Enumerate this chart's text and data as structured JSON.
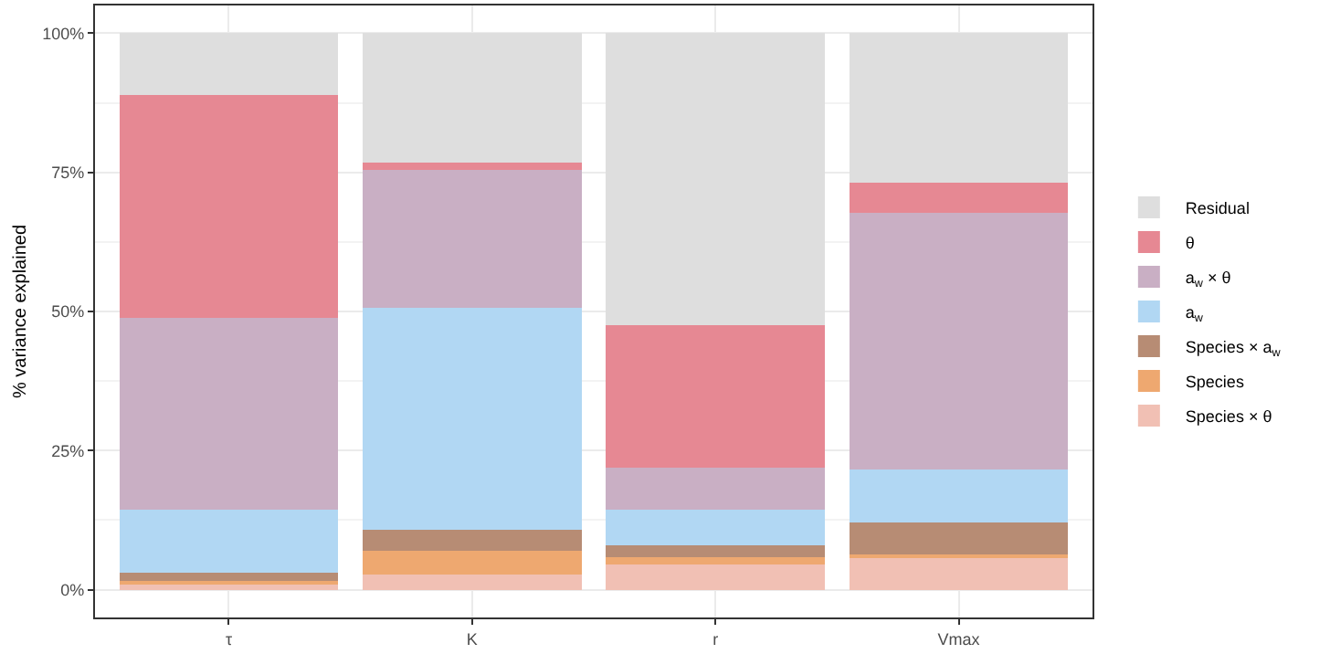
{
  "chart_data": {
    "type": "bar",
    "stacked": true,
    "ylabel": "% variance explained",
    "categories": [
      "τ",
      "K",
      "r",
      "Vmax"
    ],
    "series": [
      {
        "name": "Species × θ",
        "color": "#f1c0b4",
        "values": [
          1.2,
          2.8,
          4.6,
          5.6
        ]
      },
      {
        "name": "Species",
        "color": "#eea870",
        "values": [
          0.3,
          4.2,
          1.3,
          0.7
        ]
      },
      {
        "name": "Species × a$_{w}$",
        "color": "#b78c74",
        "values": [
          1.6,
          3.7,
          2.1,
          5.8
        ]
      },
      {
        "name": "a$_{w}$",
        "color": "#b1d7f3",
        "values": [
          11.2,
          39.9,
          6.3,
          9.5
        ]
      },
      {
        "name": "a$_{w}$ × θ",
        "color": "#c9afc4",
        "values": [
          34.5,
          24.8,
          7.6,
          46.2
        ]
      },
      {
        "name": "θ",
        "color": "#e68893",
        "values": [
          40.1,
          1.4,
          25.7,
          5.3
        ]
      },
      {
        "name": "Residual",
        "color": "#dedede",
        "values": [
          11.1,
          23.2,
          52.4,
          26.9
        ]
      }
    ],
    "ylim": [
      -5,
      105
    ],
    "yticks": [
      {
        "value": 0,
        "label": "0%"
      },
      {
        "value": 25,
        "label": "25%"
      },
      {
        "value": 50,
        "label": "50%"
      },
      {
        "value": 75,
        "label": "75%"
      },
      {
        "value": 100,
        "label": "100%"
      }
    ],
    "grid": true,
    "legend": "right"
  }
}
